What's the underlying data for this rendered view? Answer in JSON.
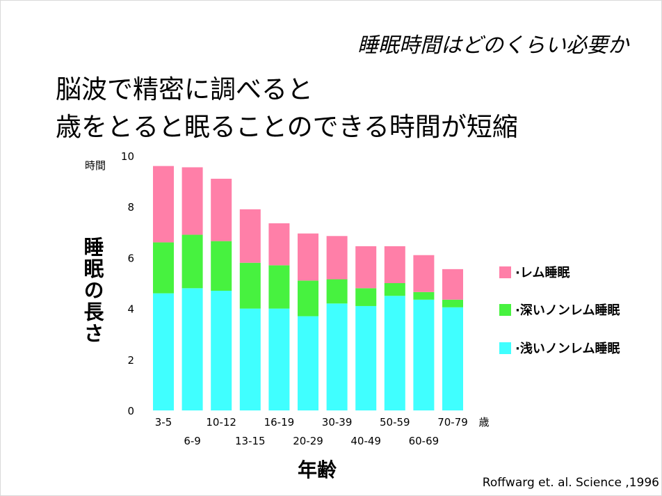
{
  "slide": {
    "subtitle": "睡眠時間はどのくらい必要か",
    "title_line1": "脳波で精密に調べると",
    "title_line2": "歳をとると眠ることのできる時間が短縮",
    "citation": "Roffwarg et. al. Science ,1996"
  },
  "chart_data": {
    "type": "bar",
    "stacked": true,
    "ylabel": "睡眠の長さ",
    "ylabel_unit": "時間",
    "xlabel": "年齢",
    "xunit": "歳",
    "ylim": [
      0,
      10
    ],
    "yticks": [
      0,
      2,
      4,
      6,
      8,
      10
    ],
    "categories": [
      "3-5",
      "6-9",
      "10-12",
      "13-15",
      "16-19",
      "20-29",
      "30-39",
      "40-49",
      "50-59",
      "60-69",
      "70-79"
    ],
    "series": [
      {
        "name": "·浅いノンレム睡眠",
        "color": "#40ffff",
        "values": [
          4.6,
          4.8,
          4.7,
          4.0,
          4.0,
          3.7,
          4.2,
          4.1,
          4.5,
          4.35,
          4.05
        ]
      },
      {
        "name": "·深いノンレム睡眠",
        "color": "#47f23f",
        "values": [
          2.0,
          2.1,
          1.95,
          1.8,
          1.7,
          1.4,
          0.95,
          0.7,
          0.5,
          0.3,
          0.3
        ]
      },
      {
        "name": "·レム睡眠",
        "color": "#ff7fa8",
        "values": [
          3.0,
          2.65,
          2.45,
          2.1,
          1.65,
          1.85,
          1.7,
          1.65,
          1.45,
          1.45,
          1.2
        ]
      }
    ],
    "legend_position": "right",
    "grid": false
  }
}
